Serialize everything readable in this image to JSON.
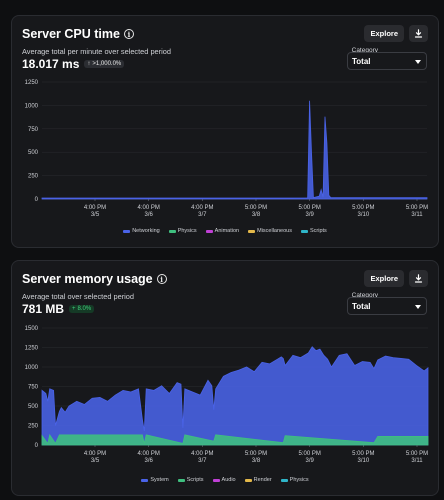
{
  "cpu": {
    "title": "Server CPU time",
    "explore_label": "Explore",
    "subtitle": "Average total per minute over selected period",
    "value": "18.017 ms",
    "delta": ">1,000.0%",
    "delta_arrow": "↑",
    "category_label": "Category",
    "category_value": "Total",
    "legend": [
      {
        "name": "Networking",
        "color": "#4a63e8"
      },
      {
        "name": "Physics",
        "color": "#3fbf7f"
      },
      {
        "name": "Animation",
        "color": "#c040d6"
      },
      {
        "name": "Miscellaneous",
        "color": "#e3b84a"
      },
      {
        "name": "Scripts",
        "color": "#2fb5c8"
      }
    ]
  },
  "memory": {
    "title": "Server memory usage",
    "explore_label": "Explore",
    "subtitle": "Average total over selected period",
    "value": "781 MB",
    "delta": "8.0%",
    "delta_arrow": "+",
    "category_label": "Category",
    "category_value": "Total",
    "legend": [
      {
        "name": "System",
        "color": "#4a63e8"
      },
      {
        "name": "Scripts",
        "color": "#3fbf7f"
      },
      {
        "name": "Audio",
        "color": "#c040d6"
      },
      {
        "name": "Render",
        "color": "#e3b84a"
      },
      {
        "name": "Physics",
        "color": "#2fb5c8"
      }
    ]
  },
  "chart_data": [
    {
      "type": "area",
      "ylim": [
        0,
        1250
      ],
      "yticks": [
        0,
        250,
        500,
        750,
        1000,
        1250
      ],
      "xticks": [
        {
          "time": "4:00 PM",
          "date": "3/5"
        },
        {
          "time": "4:00 PM",
          "date": "3/6"
        },
        {
          "time": "4:00 PM",
          "date": "3/7"
        },
        {
          "time": "5:00 PM",
          "date": "3/8"
        },
        {
          "time": "5:00 PM",
          "date": "3/9"
        },
        {
          "time": "5:00 PM",
          "date": "3/10"
        },
        {
          "time": "5:00 PM",
          "date": "3/11"
        }
      ],
      "series": [
        {
          "name": "Networking",
          "x": [
            0,
            0.65,
            0.69,
            0.695,
            0.7,
            0.705,
            0.72,
            0.725,
            0.73,
            0.735,
            0.74,
            0.745,
            0.75,
            0.76,
            1.0
          ],
          "values": [
            10,
            10,
            12,
            1050,
            500,
            15,
            30,
            100,
            20,
            880,
            600,
            40,
            15,
            15,
            14
          ]
        }
      ]
    },
    {
      "type": "area",
      "ylim": [
        0,
        1500
      ],
      "yticks": [
        0,
        250,
        500,
        750,
        1000,
        1250,
        1500
      ],
      "xticks": [
        {
          "time": "4:00 PM",
          "date": "3/5"
        },
        {
          "time": "4:00 PM",
          "date": "3/6"
        },
        {
          "time": "4:00 PM",
          "date": "3/7"
        },
        {
          "time": "5:00 PM",
          "date": "3/8"
        },
        {
          "time": "5:00 PM",
          "date": "3/9"
        },
        {
          "time": "5:00 PM",
          "date": "3/10"
        },
        {
          "time": "5:00 PM",
          "date": "3/11"
        }
      ],
      "series": [
        {
          "name": "System",
          "x": [
            0,
            0.01,
            0.015,
            0.02,
            0.03,
            0.035,
            0.045,
            0.05,
            0.06,
            0.07,
            0.09,
            0.11,
            0.13,
            0.15,
            0.17,
            0.19,
            0.21,
            0.23,
            0.25,
            0.26,
            0.265,
            0.27,
            0.29,
            0.31,
            0.33,
            0.35,
            0.36,
            0.365,
            0.37,
            0.39,
            0.41,
            0.43,
            0.44,
            0.445,
            0.45,
            0.47,
            0.49,
            0.51,
            0.53,
            0.55,
            0.57,
            0.59,
            0.61,
            0.62,
            0.625,
            0.63,
            0.65,
            0.67,
            0.69,
            0.7,
            0.71,
            0.72,
            0.73,
            0.74,
            0.75,
            0.77,
            0.79,
            0.81,
            0.83,
            0.85,
            0.86,
            0.87,
            0.89,
            0.91,
            0.93,
            0.95,
            0.97,
            0.99,
            1.0
          ],
          "values": [
            700,
            660,
            560,
            720,
            700,
            250,
            430,
            480,
            420,
            500,
            560,
            520,
            600,
            610,
            560,
            640,
            700,
            680,
            720,
            330,
            180,
            720,
            700,
            760,
            660,
            800,
            780,
            220,
            720,
            680,
            640,
            830,
            760,
            450,
            720,
            880,
            930,
            960,
            1000,
            940,
            1060,
            1040,
            1100,
            1130,
            1110,
            1020,
            1150,
            1120,
            1180,
            1260,
            1210,
            1230,
            1150,
            1100,
            1000,
            1150,
            1170,
            1020,
            1070,
            1060,
            980,
            1090,
            1140,
            1120,
            1110,
            1100,
            1020,
            950,
            990
          ]
        },
        {
          "name": "Scripts",
          "x": [
            0,
            0.015,
            0.02,
            0.035,
            0.045,
            0.26,
            0.265,
            0.27,
            0.365,
            0.37,
            0.445,
            0.45,
            0.625,
            0.63,
            0.86,
            0.87,
            1.0
          ],
          "values": [
            120,
            20,
            130,
            20,
            130,
            130,
            20,
            130,
            20,
            130,
            50,
            130,
            30,
            120,
            30,
            110,
            110
          ]
        }
      ]
    }
  ]
}
